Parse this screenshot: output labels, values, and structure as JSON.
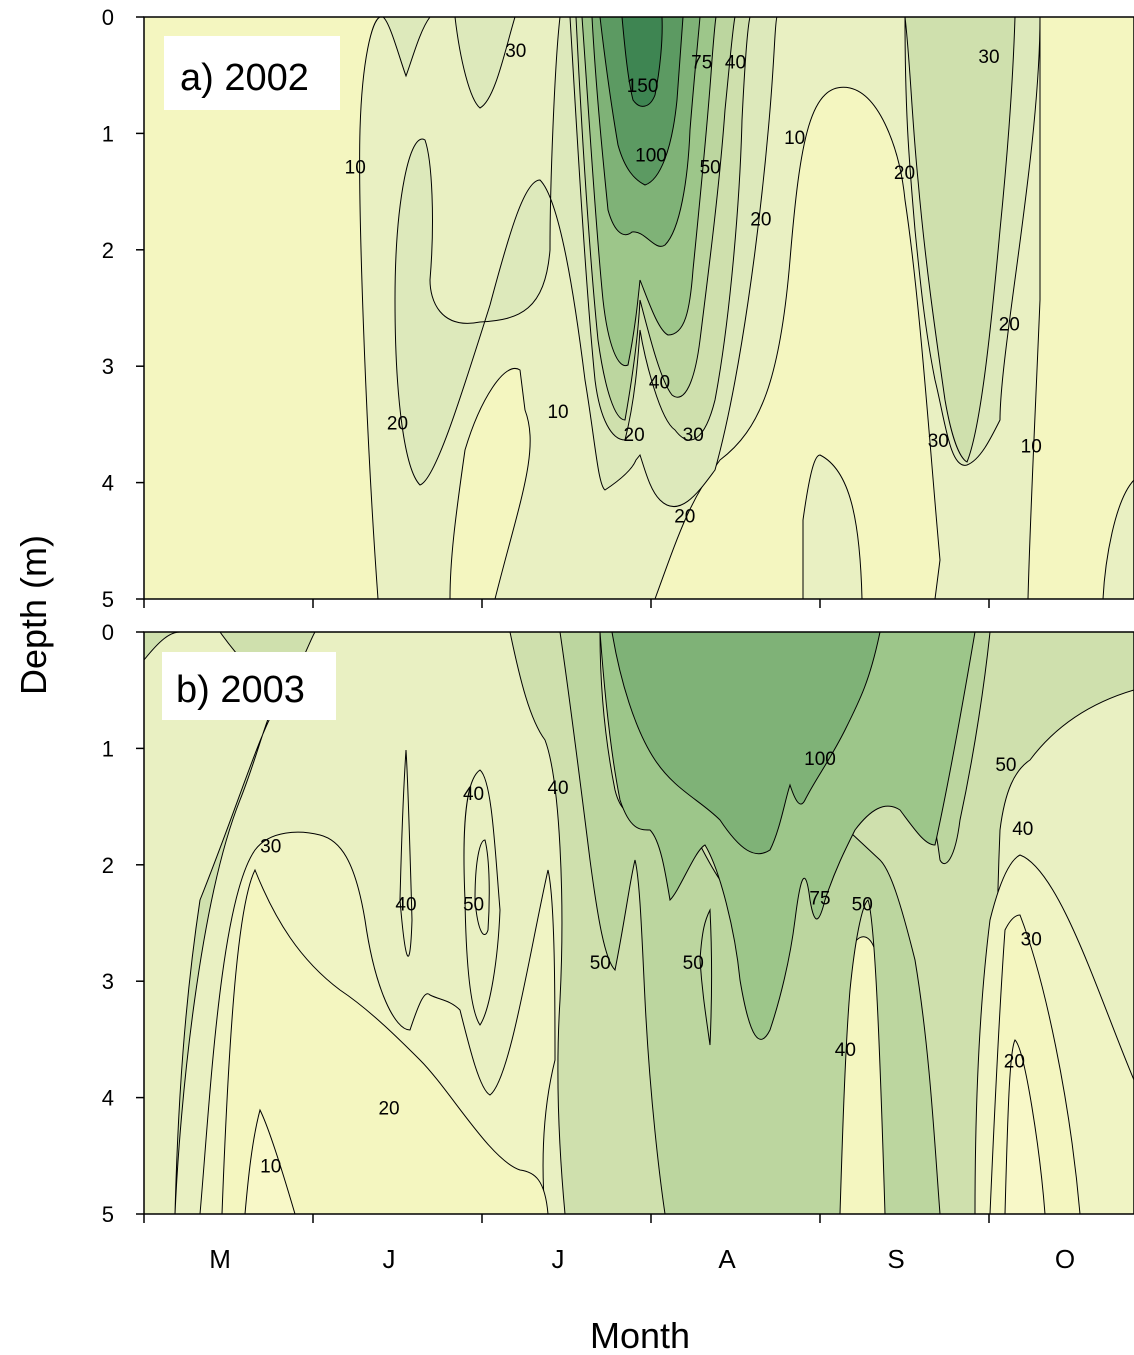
{
  "chart_data": {
    "type": "contour",
    "xlabel": "Month",
    "ylabel": "Depth (m)",
    "x_categories": [
      "M",
      "J",
      "J",
      "A",
      "S",
      "O"
    ],
    "y_ticks": [
      0,
      1,
      2,
      3,
      4,
      5
    ],
    "ylim": [
      0,
      5
    ],
    "y_inverted": true,
    "contour_levels": [
      10,
      20,
      30,
      40,
      50,
      75,
      100,
      150
    ],
    "level_colors": [
      "#f4f6c0",
      "#e9f0c2",
      "#dde9bb",
      "#cfe0ad",
      "#bcd69f",
      "#9dc68a",
      "#7fb277",
      "#5c9a62",
      "#3e8552"
    ],
    "panels": [
      {
        "label": "a) 2002",
        "contour_labels": [
          {
            "text": "10",
            "month": 1.25,
            "depth": 1.3
          },
          {
            "text": "30",
            "month": 2.2,
            "depth": 0.3
          },
          {
            "text": "150",
            "month": 2.95,
            "depth": 0.6
          },
          {
            "text": "75",
            "month": 3.3,
            "depth": 0.4
          },
          {
            "text": "40",
            "month": 3.5,
            "depth": 0.4
          },
          {
            "text": "100",
            "month": 3.0,
            "depth": 1.2
          },
          {
            "text": "50",
            "month": 3.35,
            "depth": 1.3
          },
          {
            "text": "10",
            "month": 3.85,
            "depth": 1.05
          },
          {
            "text": "20",
            "month": 3.65,
            "depth": 1.75
          },
          {
            "text": "20",
            "month": 4.5,
            "depth": 1.35
          },
          {
            "text": "30",
            "month": 5.0,
            "depth": 0.35
          },
          {
            "text": "20",
            "month": 5.12,
            "depth": 2.65
          },
          {
            "text": "10",
            "month": 2.45,
            "depth": 3.4
          },
          {
            "text": "20",
            "month": 2.9,
            "depth": 3.6
          },
          {
            "text": "40",
            "month": 3.05,
            "depth": 3.15
          },
          {
            "text": "30",
            "month": 3.25,
            "depth": 3.6
          },
          {
            "text": "20",
            "month": 3.2,
            "depth": 4.3
          },
          {
            "text": "20",
            "month": 1.5,
            "depth": 3.5
          },
          {
            "text": "30",
            "month": 4.7,
            "depth": 3.65
          },
          {
            "text": "10",
            "month": 5.25,
            "depth": 3.7
          }
        ]
      },
      {
        "label": "b) 2003",
        "contour_labels": [
          {
            "text": "30",
            "month": 0.75,
            "depth": 1.85
          },
          {
            "text": "20",
            "month": 1.45,
            "depth": 4.1
          },
          {
            "text": "10",
            "month": 0.75,
            "depth": 4.6
          },
          {
            "text": "40",
            "month": 1.55,
            "depth": 2.35
          },
          {
            "text": "40",
            "month": 1.95,
            "depth": 1.4
          },
          {
            "text": "50",
            "month": 1.95,
            "depth": 2.35
          },
          {
            "text": "40",
            "month": 2.45,
            "depth": 1.35
          },
          {
            "text": "50",
            "month": 2.7,
            "depth": 2.85
          },
          {
            "text": "50",
            "month": 3.25,
            "depth": 2.85
          },
          {
            "text": "100",
            "month": 4.0,
            "depth": 1.1
          },
          {
            "text": "75",
            "month": 4.0,
            "depth": 2.3
          },
          {
            "text": "50",
            "month": 4.25,
            "depth": 2.35
          },
          {
            "text": "40",
            "month": 4.15,
            "depth": 3.6
          },
          {
            "text": "50",
            "month": 5.1,
            "depth": 1.15
          },
          {
            "text": "40",
            "month": 5.2,
            "depth": 1.7
          },
          {
            "text": "30",
            "month": 5.25,
            "depth": 2.65
          },
          {
            "text": "20",
            "month": 5.15,
            "depth": 3.7
          }
        ]
      }
    ]
  }
}
